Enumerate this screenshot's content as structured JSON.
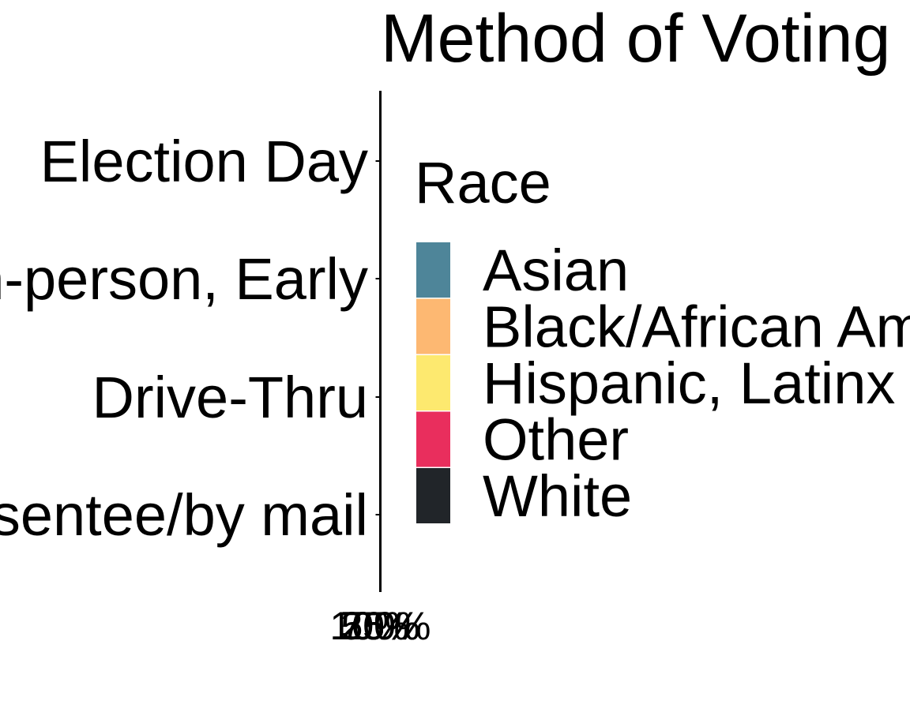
{
  "chart_data": {
    "type": "bar",
    "orientation": "horizontal",
    "stacked": true,
    "title": "Method of Voting",
    "categories": [
      "Election Day",
      "In-person, Early",
      "Drive-Thru",
      "Absentee/by mail"
    ],
    "x_tick_labels": [
      "0%",
      "25%",
      "50%",
      "75%",
      "100%"
    ],
    "xlim": [
      0,
      1
    ],
    "legend": {
      "title": "Race",
      "position": "right",
      "entries": [
        "Asian",
        "Black/African American",
        "Hispanic, Latinx",
        "Other",
        "White"
      ]
    },
    "series": [
      {
        "name": "Asian",
        "color": "#4e8599",
        "values": [
          0,
          0,
          0,
          0
        ]
      },
      {
        "name": "Black/African American",
        "color": "#fdb872",
        "values": [
          0,
          0,
          0,
          0
        ]
      },
      {
        "name": "Hispanic, Latinx",
        "color": "#fde96f",
        "values": [
          0,
          0,
          0,
          0
        ]
      },
      {
        "name": "Other",
        "color": "#e92e5d",
        "values": [
          0,
          0,
          0,
          0
        ]
      },
      {
        "name": "White",
        "color": "#212529",
        "values": [
          0,
          0,
          0,
          0
        ]
      }
    ],
    "grid": false
  }
}
